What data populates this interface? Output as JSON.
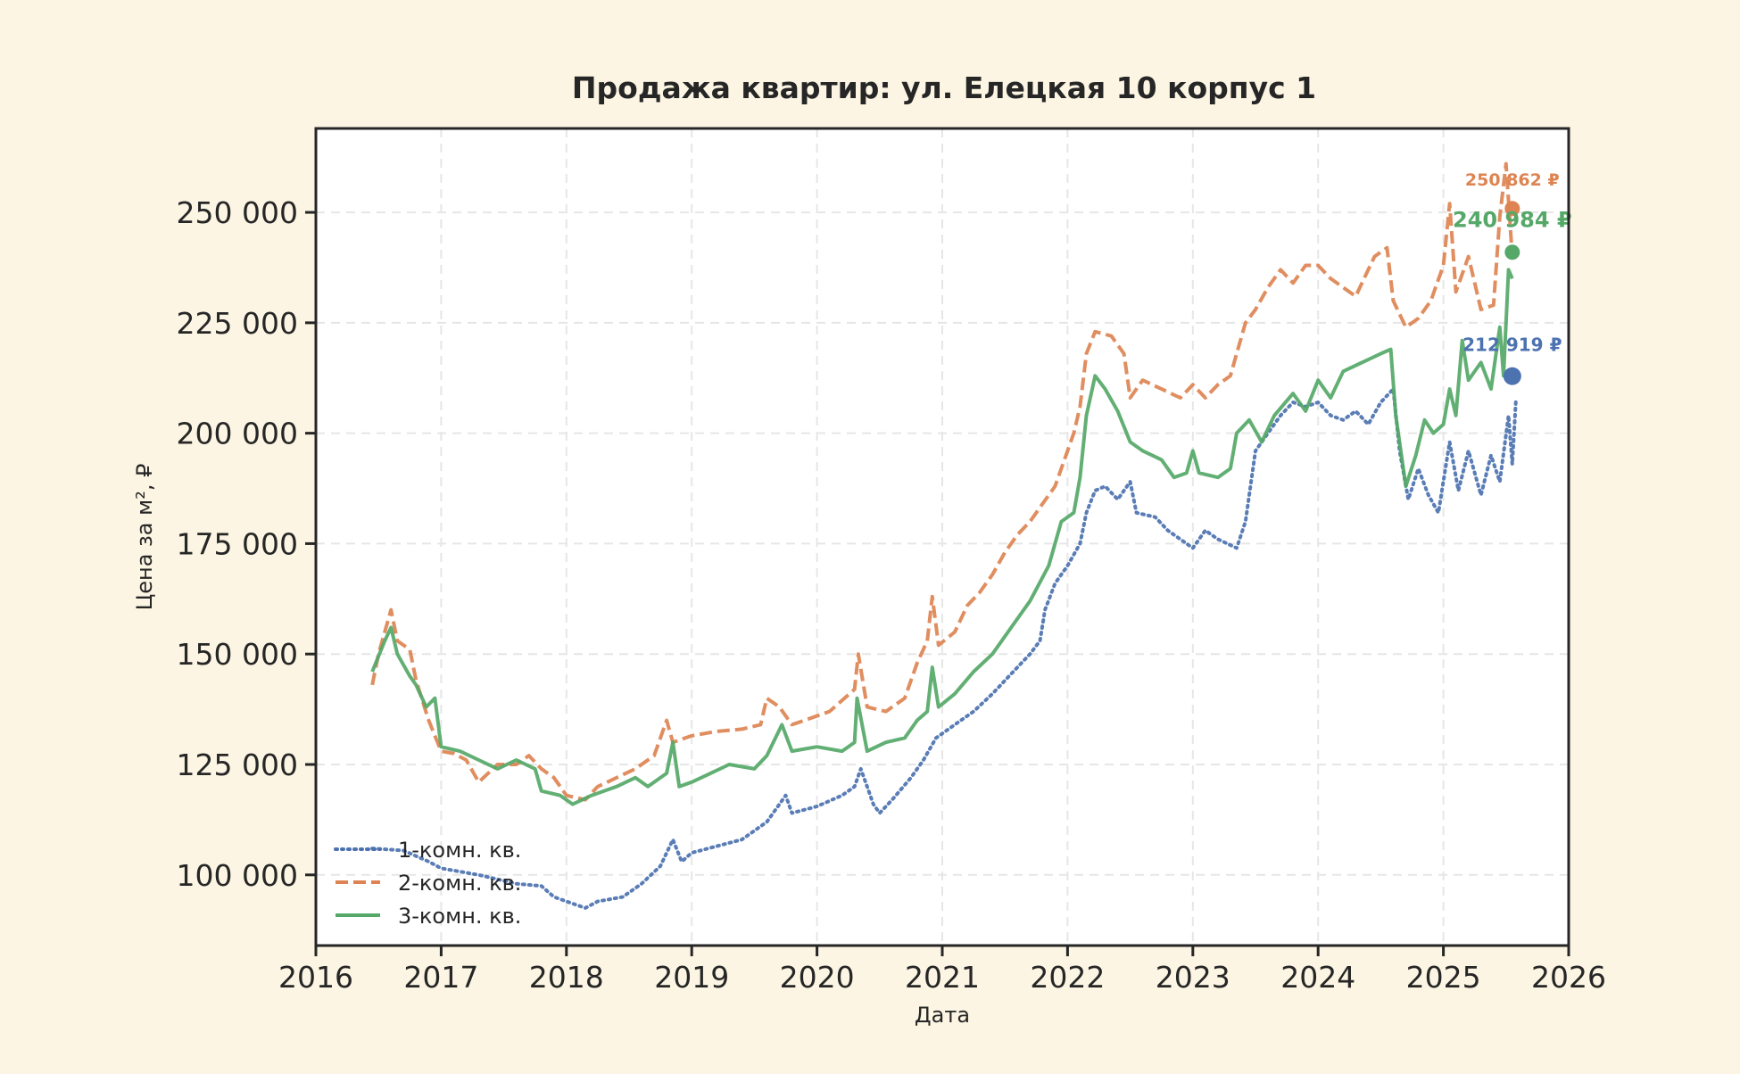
{
  "chart_data": {
    "type": "line",
    "title": "Продажа квартир: ул. Елецкая 10 корпус 1",
    "xlabel": "Дата",
    "ylabel": "Цена за м², ₽",
    "xlim": [
      2016,
      2026
    ],
    "ylim": [
      84000,
      269000
    ],
    "x_ticks": [
      "2016",
      "2017",
      "2018",
      "2019",
      "2020",
      "2021",
      "2022",
      "2023",
      "2024",
      "2025",
      "2026"
    ],
    "y_ticks": [
      "100 000",
      "125 000",
      "150 000",
      "175 000",
      "200 000",
      "225 000",
      "250 000"
    ],
    "y_tick_values": [
      100000,
      125000,
      150000,
      175000,
      200000,
      225000,
      250000
    ],
    "grid": true,
    "legend_position": "lower-left",
    "series": [
      {
        "name": "1-комн. кв.",
        "color": "#4c72b0",
        "style": "dotted",
        "points": [
          [
            2016.45,
            106000
          ],
          [
            2016.7,
            105500
          ],
          [
            2016.9,
            103000
          ],
          [
            2017.0,
            101500
          ],
          [
            2017.3,
            100000
          ],
          [
            2017.6,
            98000
          ],
          [
            2017.8,
            97500
          ],
          [
            2017.9,
            95000
          ],
          [
            2018.0,
            94000
          ],
          [
            2018.15,
            92500
          ],
          [
            2018.25,
            94000
          ],
          [
            2018.45,
            95000
          ],
          [
            2018.6,
            98000
          ],
          [
            2018.75,
            102000
          ],
          [
            2018.85,
            108000
          ],
          [
            2018.92,
            103000
          ],
          [
            2019.0,
            105000
          ],
          [
            2019.2,
            106500
          ],
          [
            2019.4,
            108000
          ],
          [
            2019.6,
            112000
          ],
          [
            2019.75,
            118000
          ],
          [
            2019.8,
            114000
          ],
          [
            2020.0,
            115500
          ],
          [
            2020.2,
            118000
          ],
          [
            2020.3,
            120000
          ],
          [
            2020.35,
            124000
          ],
          [
            2020.45,
            116000
          ],
          [
            2020.5,
            114000
          ],
          [
            2020.6,
            117000
          ],
          [
            2020.75,
            122000
          ],
          [
            2020.85,
            126000
          ],
          [
            2020.95,
            131000
          ],
          [
            2021.1,
            134000
          ],
          [
            2021.25,
            137000
          ],
          [
            2021.4,
            141000
          ],
          [
            2021.5,
            144000
          ],
          [
            2021.6,
            147000
          ],
          [
            2021.7,
            150000
          ],
          [
            2021.78,
            153000
          ],
          [
            2021.82,
            160000
          ],
          [
            2021.9,
            166000
          ],
          [
            2022.0,
            170000
          ],
          [
            2022.1,
            175000
          ],
          [
            2022.15,
            182000
          ],
          [
            2022.22,
            187000
          ],
          [
            2022.3,
            188000
          ],
          [
            2022.4,
            185000
          ],
          [
            2022.5,
            189000
          ],
          [
            2022.55,
            182000
          ],
          [
            2022.7,
            181000
          ],
          [
            2022.8,
            178000
          ],
          [
            2022.9,
            176000
          ],
          [
            2023.0,
            174000
          ],
          [
            2023.1,
            178000
          ],
          [
            2023.2,
            176000
          ],
          [
            2023.35,
            174000
          ],
          [
            2023.42,
            180000
          ],
          [
            2023.5,
            196000
          ],
          [
            2023.6,
            200000
          ],
          [
            2023.7,
            204000
          ],
          [
            2023.8,
            207000
          ],
          [
            2023.9,
            206000
          ],
          [
            2024.0,
            207000
          ],
          [
            2024.1,
            204000
          ],
          [
            2024.2,
            203000
          ],
          [
            2024.3,
            205000
          ],
          [
            2024.4,
            202000
          ],
          [
            2024.5,
            207000
          ],
          [
            2024.6,
            210000
          ],
          [
            2024.65,
            196000
          ],
          [
            2024.72,
            185000
          ],
          [
            2024.8,
            192000
          ],
          [
            2024.88,
            186000
          ],
          [
            2024.96,
            182000
          ],
          [
            2025.05,
            198000
          ],
          [
            2025.12,
            187000
          ],
          [
            2025.2,
            196000
          ],
          [
            2025.3,
            186000
          ],
          [
            2025.38,
            195000
          ],
          [
            2025.45,
            189000
          ],
          [
            2025.52,
            204000
          ],
          [
            2025.55,
            193000
          ],
          [
            2025.58,
            208000
          ]
        ],
        "last_label": "212 919 ₽",
        "last_value": 212919,
        "last_x": 2025.55
      },
      {
        "name": "2-комн. кв.",
        "color": "#dd8452",
        "style": "dashed",
        "points": [
          [
            2016.45,
            143000
          ],
          [
            2016.5,
            150000
          ],
          [
            2016.55,
            155000
          ],
          [
            2016.6,
            160000
          ],
          [
            2016.65,
            153000
          ],
          [
            2016.75,
            151000
          ],
          [
            2016.8,
            144000
          ],
          [
            2016.9,
            135000
          ],
          [
            2017.0,
            128000
          ],
          [
            2017.1,
            127500
          ],
          [
            2017.2,
            126000
          ],
          [
            2017.3,
            121000
          ],
          [
            2017.45,
            125000
          ],
          [
            2017.6,
            125000
          ],
          [
            2017.7,
            127000
          ],
          [
            2017.8,
            124000
          ],
          [
            2017.9,
            122000
          ],
          [
            2018.0,
            118000
          ],
          [
            2018.15,
            117000
          ],
          [
            2018.25,
            120000
          ],
          [
            2018.4,
            122000
          ],
          [
            2018.55,
            124000
          ],
          [
            2018.7,
            127000
          ],
          [
            2018.8,
            135000
          ],
          [
            2018.85,
            130000
          ],
          [
            2019.0,
            131500
          ],
          [
            2019.2,
            132500
          ],
          [
            2019.4,
            133000
          ],
          [
            2019.55,
            134000
          ],
          [
            2019.6,
            140000
          ],
          [
            2019.7,
            138000
          ],
          [
            2019.8,
            134000
          ],
          [
            2019.9,
            135000
          ],
          [
            2020.1,
            137000
          ],
          [
            2020.3,
            142000
          ],
          [
            2020.33,
            150000
          ],
          [
            2020.4,
            138000
          ],
          [
            2020.55,
            137000
          ],
          [
            2020.7,
            140000
          ],
          [
            2020.8,
            148000
          ],
          [
            2020.88,
            153000
          ],
          [
            2020.92,
            163000
          ],
          [
            2020.97,
            152000
          ],
          [
            2021.1,
            155000
          ],
          [
            2021.2,
            161000
          ],
          [
            2021.3,
            164000
          ],
          [
            2021.4,
            168000
          ],
          [
            2021.5,
            173000
          ],
          [
            2021.6,
            177000
          ],
          [
            2021.7,
            180000
          ],
          [
            2021.8,
            184000
          ],
          [
            2021.9,
            188000
          ],
          [
            2022.0,
            196000
          ],
          [
            2022.05,
            200000
          ],
          [
            2022.1,
            206000
          ],
          [
            2022.15,
            218000
          ],
          [
            2022.22,
            223000
          ],
          [
            2022.35,
            222000
          ],
          [
            2022.45,
            218000
          ],
          [
            2022.5,
            208000
          ],
          [
            2022.6,
            212000
          ],
          [
            2022.75,
            210000
          ],
          [
            2022.9,
            208000
          ],
          [
            2023.0,
            211000
          ],
          [
            2023.1,
            208000
          ],
          [
            2023.2,
            211000
          ],
          [
            2023.3,
            213000
          ],
          [
            2023.35,
            218000
          ],
          [
            2023.42,
            225000
          ],
          [
            2023.5,
            228000
          ],
          [
            2023.6,
            233000
          ],
          [
            2023.7,
            237000
          ],
          [
            2023.8,
            234000
          ],
          [
            2023.9,
            238000
          ],
          [
            2024.0,
            238000
          ],
          [
            2024.1,
            235000
          ],
          [
            2024.2,
            233000
          ],
          [
            2024.3,
            231000
          ],
          [
            2024.45,
            240000
          ],
          [
            2024.55,
            242000
          ],
          [
            2024.6,
            230000
          ],
          [
            2024.7,
            224000
          ],
          [
            2024.8,
            226000
          ],
          [
            2024.9,
            230000
          ],
          [
            2025.0,
            238000
          ],
          [
            2025.05,
            252000
          ],
          [
            2025.1,
            232000
          ],
          [
            2025.2,
            240000
          ],
          [
            2025.3,
            228000
          ],
          [
            2025.4,
            229000
          ],
          [
            2025.45,
            249000
          ],
          [
            2025.5,
            261000
          ],
          [
            2025.55,
            240000
          ]
        ],
        "last_label": "250 862 ₽",
        "last_value": 250862,
        "last_x": 2025.55
      },
      {
        "name": "3-комн. кв.",
        "color": "#55a868",
        "style": "solid",
        "points": [
          [
            2016.45,
            146000
          ],
          [
            2016.55,
            153000
          ],
          [
            2016.6,
            156000
          ],
          [
            2016.65,
            150000
          ],
          [
            2016.75,
            145000
          ],
          [
            2016.8,
            143000
          ],
          [
            2016.88,
            138000
          ],
          [
            2016.95,
            140000
          ],
          [
            2017.0,
            129000
          ],
          [
            2017.15,
            128000
          ],
          [
            2017.3,
            126000
          ],
          [
            2017.45,
            124000
          ],
          [
            2017.6,
            126000
          ],
          [
            2017.75,
            124000
          ],
          [
            2017.8,
            119000
          ],
          [
            2017.95,
            118000
          ],
          [
            2018.05,
            116000
          ],
          [
            2018.2,
            118000
          ],
          [
            2018.4,
            120000
          ],
          [
            2018.55,
            122000
          ],
          [
            2018.65,
            120000
          ],
          [
            2018.8,
            123000
          ],
          [
            2018.85,
            130000
          ],
          [
            2018.9,
            120000
          ],
          [
            2019.0,
            121000
          ],
          [
            2019.15,
            123000
          ],
          [
            2019.3,
            125000
          ],
          [
            2019.5,
            124000
          ],
          [
            2019.6,
            127000
          ],
          [
            2019.72,
            134000
          ],
          [
            2019.8,
            128000
          ],
          [
            2020.0,
            129000
          ],
          [
            2020.2,
            128000
          ],
          [
            2020.3,
            130000
          ],
          [
            2020.32,
            140000
          ],
          [
            2020.4,
            128000
          ],
          [
            2020.55,
            130000
          ],
          [
            2020.7,
            131000
          ],
          [
            2020.8,
            135000
          ],
          [
            2020.88,
            137000
          ],
          [
            2020.92,
            147000
          ],
          [
            2020.97,
            138000
          ],
          [
            2021.1,
            141000
          ],
          [
            2021.25,
            146000
          ],
          [
            2021.4,
            150000
          ],
          [
            2021.55,
            156000
          ],
          [
            2021.7,
            162000
          ],
          [
            2021.85,
            170000
          ],
          [
            2021.95,
            180000
          ],
          [
            2022.05,
            182000
          ],
          [
            2022.1,
            190000
          ],
          [
            2022.15,
            204000
          ],
          [
            2022.22,
            213000
          ],
          [
            2022.3,
            210000
          ],
          [
            2022.4,
            205000
          ],
          [
            2022.5,
            198000
          ],
          [
            2022.6,
            196000
          ],
          [
            2022.75,
            194000
          ],
          [
            2022.85,
            190000
          ],
          [
            2022.95,
            191000
          ],
          [
            2023.0,
            196000
          ],
          [
            2023.05,
            191000
          ],
          [
            2023.2,
            190000
          ],
          [
            2023.3,
            192000
          ],
          [
            2023.35,
            200000
          ],
          [
            2023.45,
            203000
          ],
          [
            2023.55,
            198000
          ],
          [
            2023.65,
            204000
          ],
          [
            2023.8,
            209000
          ],
          [
            2023.9,
            205000
          ],
          [
            2024.0,
            212000
          ],
          [
            2024.1,
            208000
          ],
          [
            2024.2,
            214000
          ],
          [
            2024.35,
            216000
          ],
          [
            2024.5,
            218000
          ],
          [
            2024.58,
            219000
          ],
          [
            2024.62,
            204000
          ],
          [
            2024.7,
            188000
          ],
          [
            2024.78,
            195000
          ],
          [
            2024.85,
            203000
          ],
          [
            2024.92,
            200000
          ],
          [
            2025.0,
            202000
          ],
          [
            2025.05,
            210000
          ],
          [
            2025.1,
            204000
          ],
          [
            2025.15,
            221000
          ],
          [
            2025.2,
            212000
          ],
          [
            2025.3,
            216000
          ],
          [
            2025.38,
            210000
          ],
          [
            2025.45,
            224000
          ],
          [
            2025.48,
            213000
          ],
          [
            2025.52,
            237000
          ],
          [
            2025.55,
            235000
          ]
        ],
        "last_label": "240 984 ₽",
        "last_value": 240984,
        "last_x": 2025.55
      }
    ]
  }
}
